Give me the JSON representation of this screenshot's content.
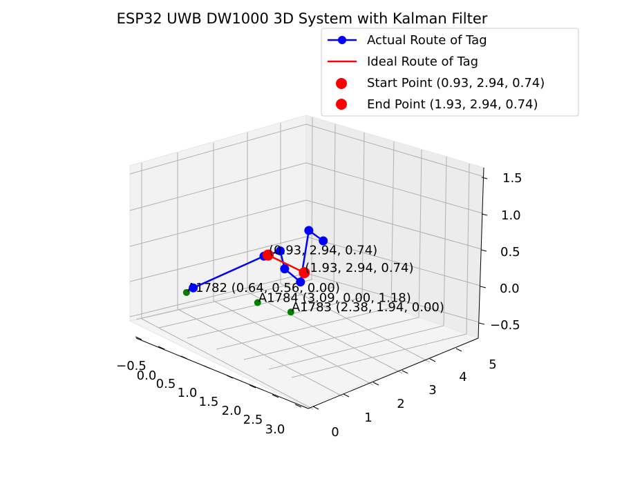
{
  "chart_data": {
    "type": "line3d",
    "title": "ESP32 UWB DW1000 3D System with Kalman Filter",
    "axes": {
      "x": {
        "ticks": [
          "−0.5",
          "0.0",
          "0.5",
          "1.0",
          "1.5",
          "2.0",
          "2.5",
          "3.0"
        ]
      },
      "y": {
        "ticks": [
          "0",
          "1",
          "2",
          "3",
          "4",
          "5"
        ]
      },
      "z": {
        "ticks": [
          "−0.5",
          "0.0",
          "0.5",
          "1.0",
          "1.5"
        ]
      }
    },
    "legend": {
      "position": "top-right",
      "entries": [
        {
          "label": "Actual Route of Tag",
          "color": "#0000ff",
          "marker": "line+circle"
        },
        {
          "label": "Ideal Route of Tag",
          "color": "#ff0000",
          "marker": "line"
        },
        {
          "label": "Start Point (0.93, 2.94, 0.74)",
          "color": "#ff0000",
          "marker": "circle"
        },
        {
          "label": "End Point (1.93, 2.94, 0.74)",
          "color": "#ff0000",
          "marker": "circle"
        }
      ]
    },
    "series": [
      {
        "name": "Actual Route of Tag",
        "color": "#0000ff",
        "points": [
          [
            0.62,
            0.81,
            0.07
          ],
          [
            0.93,
            2.8,
            0.74
          ],
          [
            1.47,
            2.7,
            1.23
          ],
          [
            1.67,
            2.6,
            0.8
          ],
          [
            2.19,
            2.5,
            0.7
          ],
          [
            1.35,
            3.8,
            1.53
          ],
          [
            1.79,
            3.75,
            1.46
          ]
        ]
      },
      {
        "name": "Ideal Route of Tag",
        "color": "#ff0000",
        "points": [
          [
            0.93,
            2.94,
            0.74
          ],
          [
            1.93,
            2.94,
            0.74
          ]
        ]
      }
    ],
    "start_point": {
      "label": "(0.93, 2.94, 0.74)",
      "x": 0.93,
      "y": 2.94,
      "z": 0.74,
      "color": "#ff0000"
    },
    "end_point": {
      "label": "(1.93, 2.94, 0.74)",
      "x": 1.93,
      "y": 2.94,
      "z": 0.74,
      "color": "#ff0000"
    },
    "anchors": [
      {
        "label": "A1782 (0.64, 0.56, 0.00)",
        "x": 0.64,
        "y": 0.56,
        "z": 0.0,
        "color": "#008000"
      },
      {
        "label": "A1783 (2.38, 1.94, 0.00)",
        "x": 2.38,
        "y": 1.94,
        "z": 0.0,
        "color": "#008000"
      },
      {
        "label": "A1784 (3.09, 0.00, 1.18)",
        "x": 3.09,
        "y": 0.0,
        "z": 1.18,
        "color": "#008000"
      }
    ],
    "grid": true
  }
}
